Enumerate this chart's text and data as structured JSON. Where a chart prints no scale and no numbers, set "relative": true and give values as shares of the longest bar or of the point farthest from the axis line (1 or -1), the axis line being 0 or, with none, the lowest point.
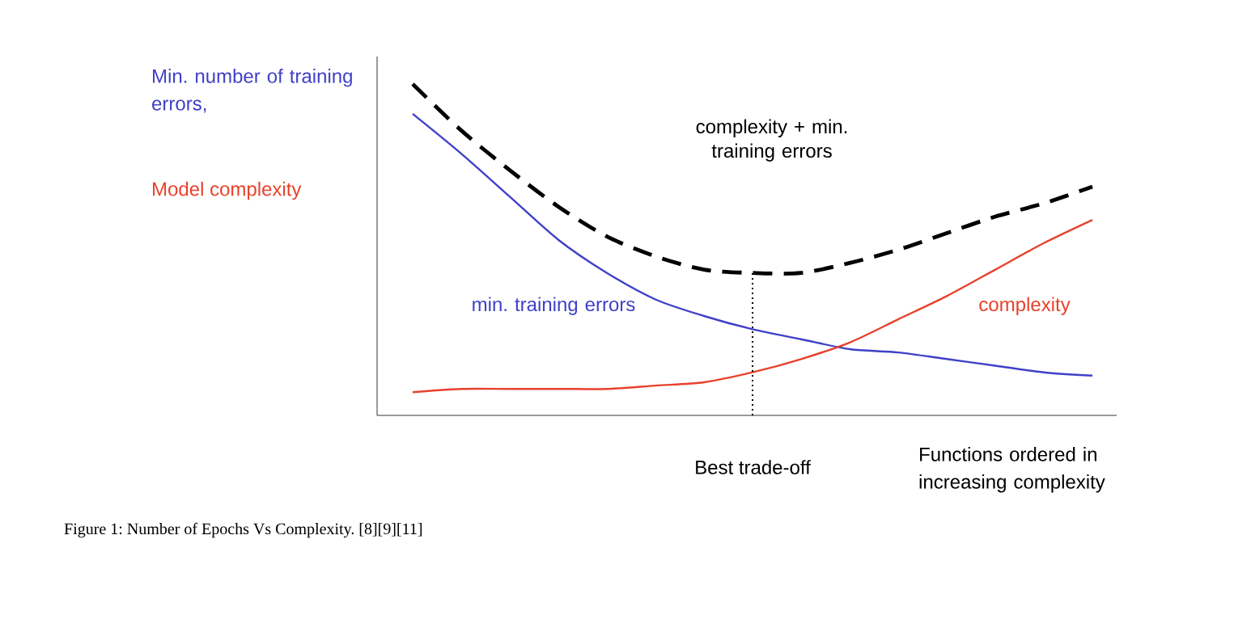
{
  "chart_data": {
    "type": "line",
    "relative": true,
    "marker": "none",
    "ylabel": "Min. number of training errors,",
    "xlabel": "Functions ordered in increasing complexity",
    "categories": [
      null,
      null,
      null,
      null,
      null,
      null,
      null,
      null,
      null,
      null,
      null,
      null,
      null,
      null,
      null
    ],
    "series": [
      {
        "name": "min. training errors",
        "color": "#4040c8",
        "values": [
          0.91,
          0.79,
          0.66,
          0.53,
          0.43,
          0.35,
          0.3,
          0.26,
          0.23,
          0.2,
          0.19,
          0.17,
          0.15,
          0.13,
          0.12
        ]
      },
      {
        "name": "complexity",
        "color": "#e8412c",
        "values": [
          0.07,
          0.08,
          0.08,
          0.08,
          0.08,
          0.09,
          0.1,
          0.13,
          0.17,
          0.22,
          0.29,
          0.36,
          0.44,
          0.52,
          0.59
        ]
      },
      {
        "name": "complexity + min. training errors",
        "color": "#000000",
        "line_style": "dashed",
        "values": [
          1,
          0.86,
          0.74,
          0.63,
          0.54,
          0.48,
          0.44,
          0.43,
          0.43,
          0.46,
          0.5,
          0.55,
          0.6,
          0.64,
          0.69
        ]
      }
    ],
    "annotations": [
      "Model complexity",
      "Best trade-off",
      "Figure 1: Number of Epochs Vs Complexity. [8][9][11]"
    ]
  }
}
